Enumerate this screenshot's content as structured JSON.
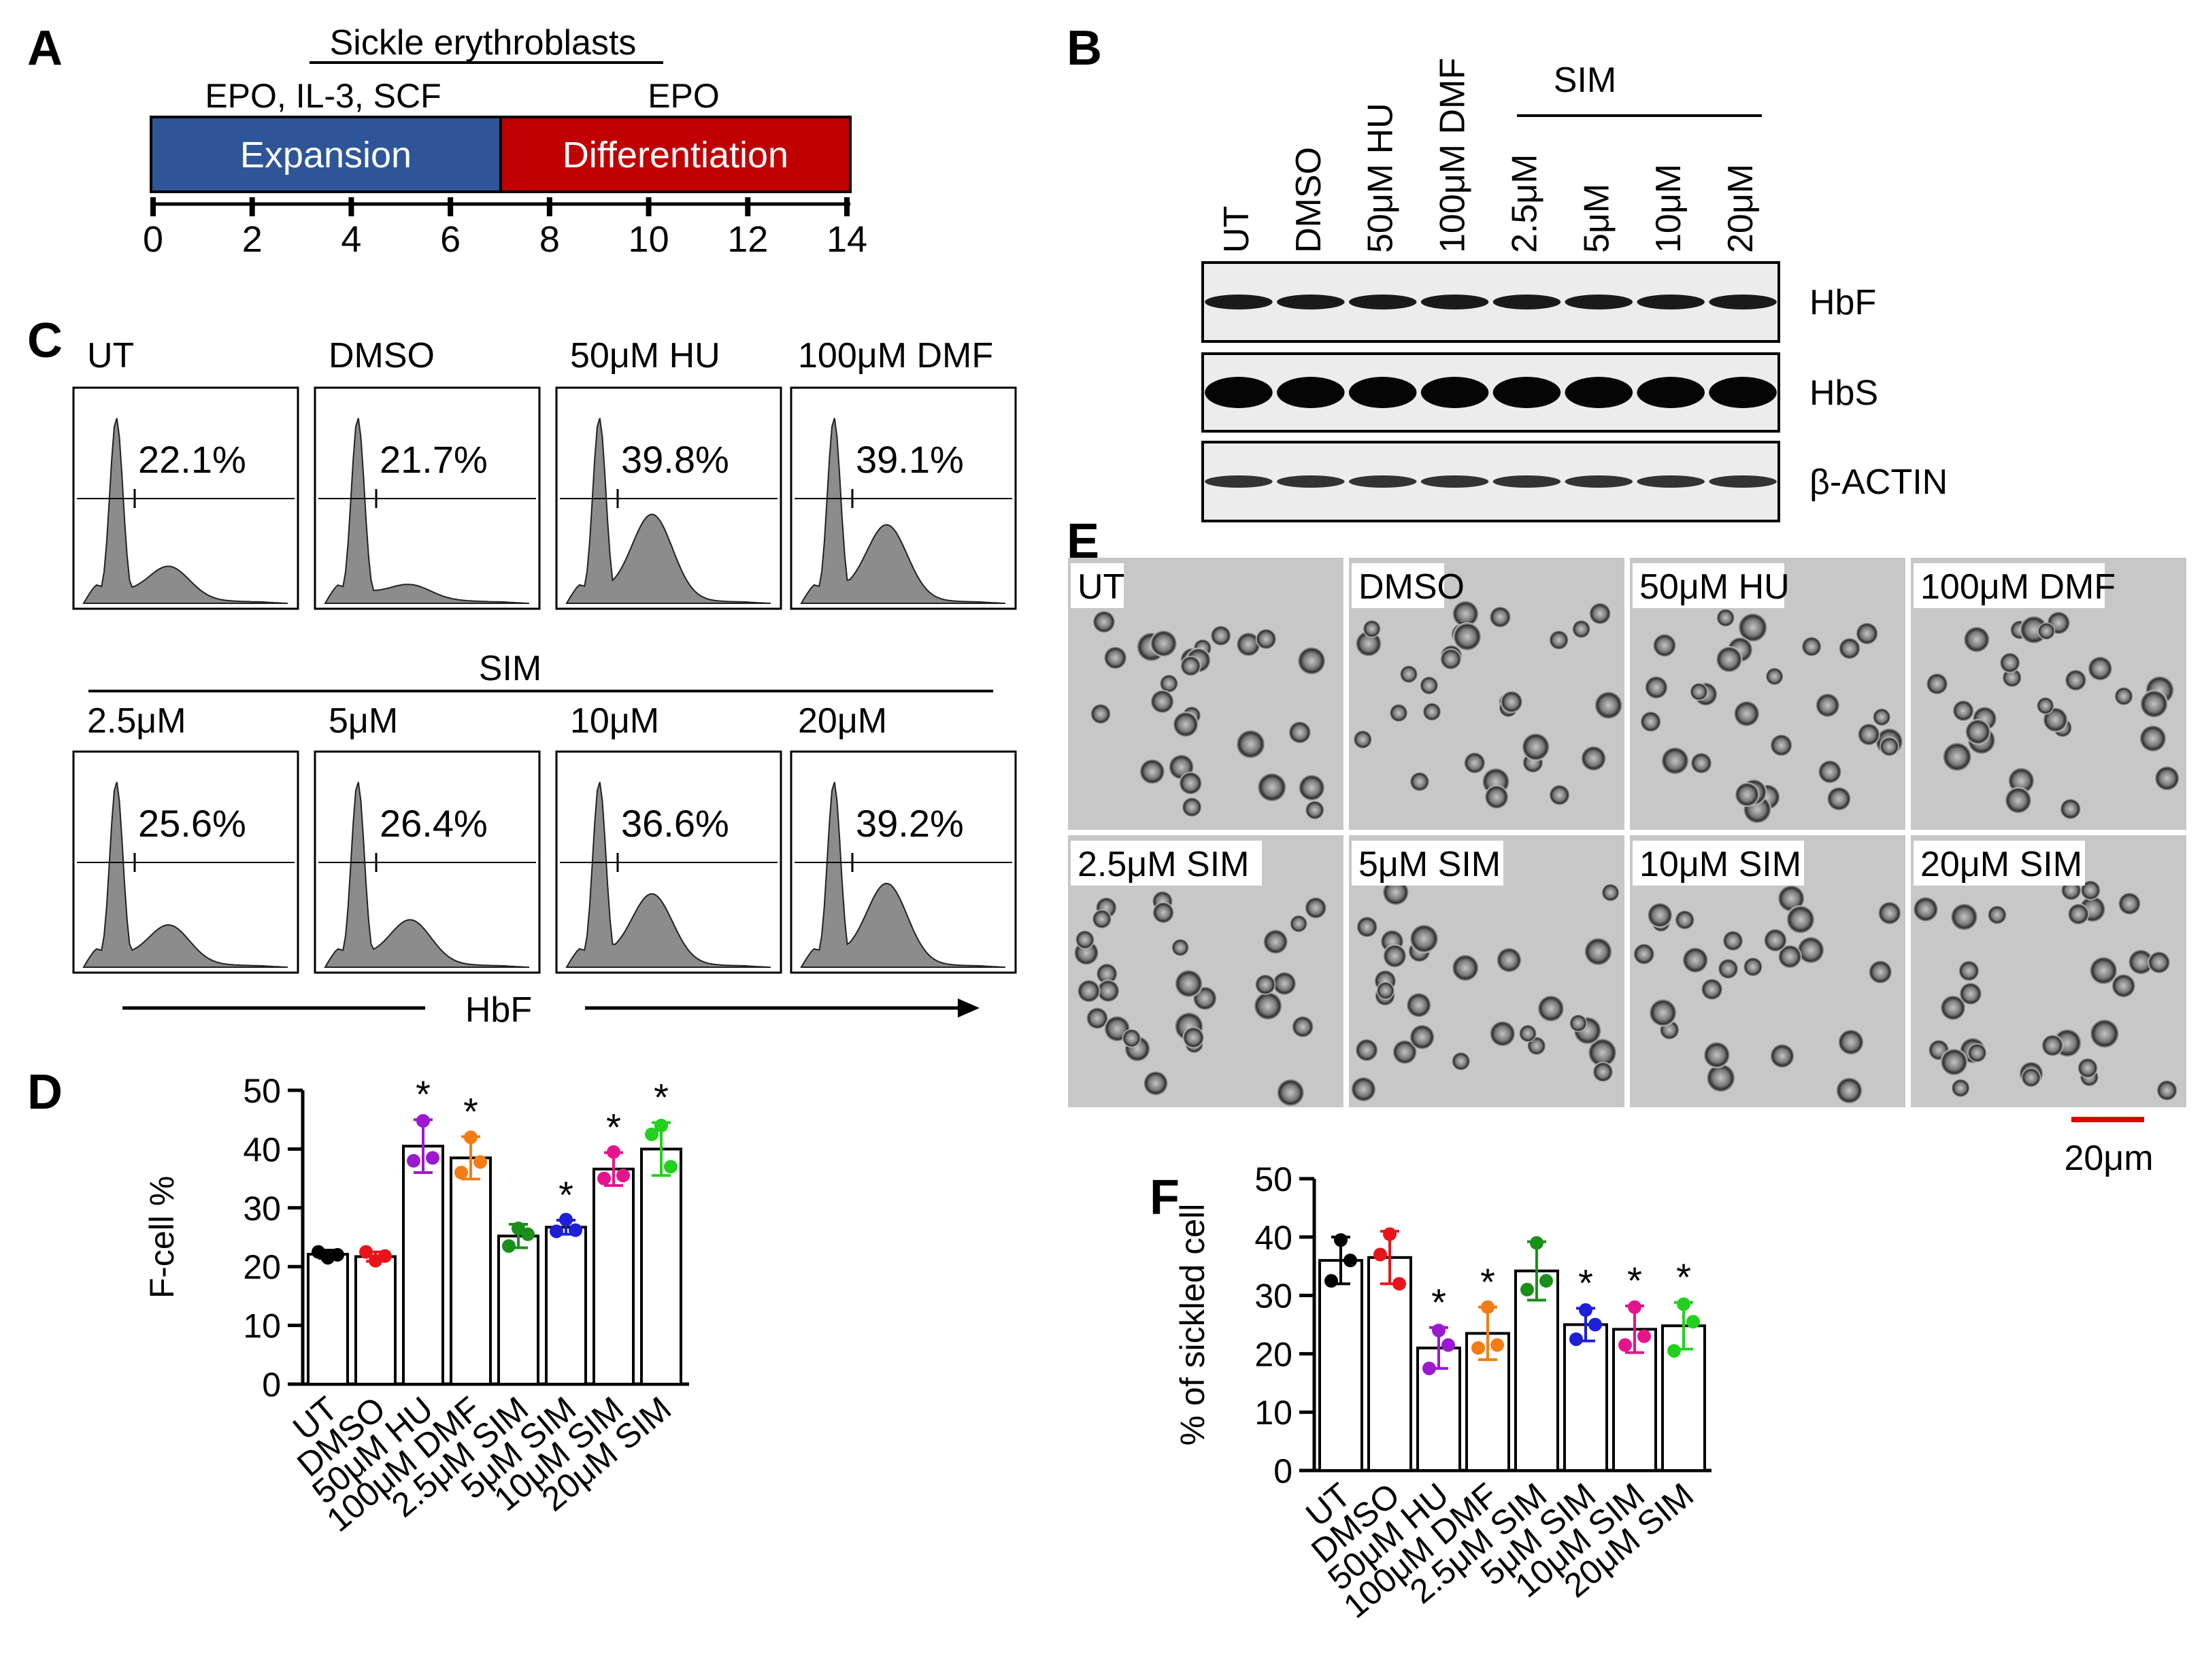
{
  "panel_labels": {
    "a": "A",
    "b": "B",
    "c": "C",
    "d": "D",
    "e": "E",
    "f": "F"
  },
  "panel_a": {
    "title": "Sickle erythroblasts",
    "expansion_factors": "EPO, IL-3, SCF",
    "differentiation_factors": "EPO",
    "expansion_label": "Expansion",
    "differentiation_label": "Differentiation",
    "expansion_color": "#2E5597",
    "differentiation_color": "#C00000",
    "ticks": [
      "0",
      "2",
      "4",
      "6",
      "8",
      "10",
      "12",
      "14"
    ]
  },
  "panel_b": {
    "group_label": "SIM",
    "lanes": [
      "UT",
      "DMSO",
      "50μM HU",
      "100μM DMF",
      "2.5μM",
      "5μM",
      "10μM",
      "20μM"
    ],
    "blots": [
      "HbF",
      "HbS",
      "β-ACTIN"
    ]
  },
  "panel_c": {
    "top": [
      {
        "label": "UT",
        "pct": "22.1%"
      },
      {
        "label": "DMSO",
        "pct": "21.7%"
      },
      {
        "label": "50μM HU",
        "pct": "39.8%"
      },
      {
        "label": "100μM DMF",
        "pct": "39.1%"
      }
    ],
    "sim_label": "SIM",
    "bottom": [
      {
        "label": "2.5μM",
        "pct": "25.6%"
      },
      {
        "label": "5μM",
        "pct": "26.4%"
      },
      {
        "label": "10μM",
        "pct": "36.6%"
      },
      {
        "label": "20μM",
        "pct": "39.2%"
      }
    ],
    "xlabel": "HbF"
  },
  "panel_e": {
    "labels": [
      "UT",
      "DMSO",
      "50μM HU",
      "100μM DMF",
      "2.5μM SIM",
      "5μM SIM",
      "10μM SIM",
      "20μM SIM"
    ],
    "scale_label": "20μm",
    "scale_color": "#E00000"
  },
  "chart_data": [
    {
      "panel": "D",
      "type": "bar",
      "ylabel": "F-cell %",
      "ylim": [
        0,
        50
      ],
      "yticks": [
        "0",
        "10",
        "20",
        "30",
        "40",
        "50"
      ],
      "categories": [
        "UT",
        "DMSO",
        "50μM HU",
        "100μM DMF",
        "2.5μM SIM",
        "5μM SIM",
        "10μM SIM",
        "20μM SIM"
      ],
      "values": [
        22.1,
        21.7,
        40.5,
        38.5,
        25.2,
        26.7,
        36.6,
        40.0
      ],
      "errors": [
        0.7,
        0.8,
        4.5,
        3.6,
        2.0,
        1.2,
        2.8,
        4.5
      ],
      "points": [
        [
          21.5,
          22.5,
          22.0
        ],
        [
          21.0,
          22.5,
          21.8
        ],
        [
          44.8,
          38.0,
          38.5
        ],
        [
          42.0,
          36.0,
          37.8
        ],
        [
          26.5,
          23.5,
          25.5
        ],
        [
          28.0,
          26.0,
          26.2
        ],
        [
          39.5,
          35.0,
          35.5
        ],
        [
          44.0,
          42.5,
          37.0
        ]
      ],
      "point_colors": [
        "#000000",
        "#E8141A",
        "#9B19D1",
        "#F57C13",
        "#1A8F1A",
        "#1E1ED8",
        "#E6148C",
        "#22D11E"
      ],
      "significance": [
        "",
        "",
        "*",
        "*",
        "",
        "*",
        "*",
        "*"
      ]
    },
    {
      "panel": "F",
      "type": "bar",
      "ylabel": "% of sickled cell",
      "ylim": [
        0,
        50
      ],
      "yticks": [
        "0",
        "10",
        "20",
        "30",
        "40",
        "50"
      ],
      "categories": [
        "UT",
        "DMSO",
        "50μM HU",
        "100μM DMF",
        "2.5μM SIM",
        "5μM SIM",
        "10μM SIM",
        "20μM SIM"
      ],
      "values": [
        36.0,
        36.5,
        21.0,
        23.5,
        34.2,
        25.0,
        24.2,
        24.8
      ],
      "errors": [
        4.0,
        4.5,
        3.5,
        4.5,
        5.0,
        2.8,
        4.0,
        4.0
      ],
      "points": [
        [
          39.5,
          32.5,
          36.0
        ],
        [
          40.5,
          37.0,
          32.0
        ],
        [
          24.0,
          17.5,
          21.5
        ],
        [
          28.0,
          21.0,
          21.5
        ],
        [
          39.0,
          31.0,
          32.5
        ],
        [
          27.5,
          22.5,
          25.0
        ],
        [
          28.0,
          21.5,
          23.0
        ],
        [
          28.5,
          20.5,
          25.5
        ]
      ],
      "point_colors": [
        "#000000",
        "#E8141A",
        "#9B19D1",
        "#F57C13",
        "#1A8F1A",
        "#1E1ED8",
        "#E6148C",
        "#22D11E"
      ],
      "significance": [
        "",
        "",
        "*",
        "*",
        "",
        "*",
        "*",
        "*"
      ]
    }
  ]
}
